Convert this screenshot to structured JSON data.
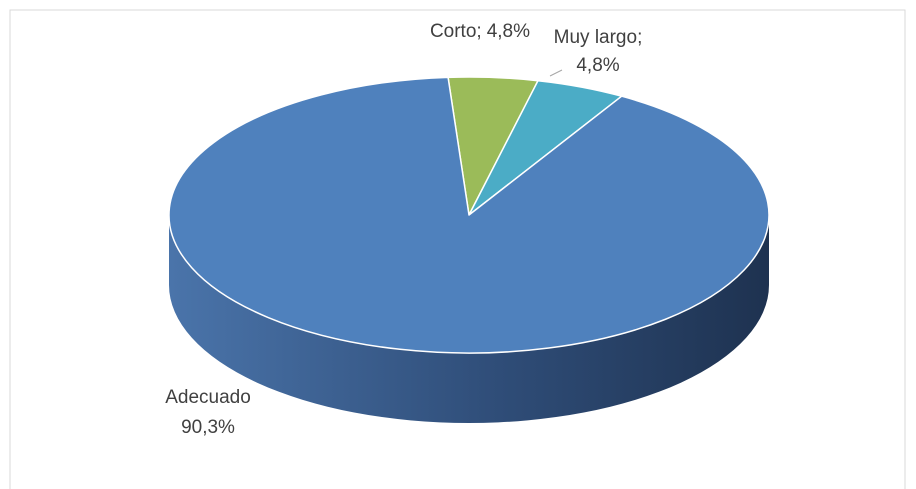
{
  "chart_data": {
    "type": "pie3d",
    "categories": [
      "Corto;",
      "Muy largo;",
      "Adecuado"
    ],
    "values": [
      4.8,
      4.8,
      90.3
    ],
    "value_labels": [
      "4,8%",
      "4,8%",
      "90,3%"
    ],
    "colors": [
      "#9bbb59",
      "#4bacc6",
      "#4f81bd"
    ]
  }
}
